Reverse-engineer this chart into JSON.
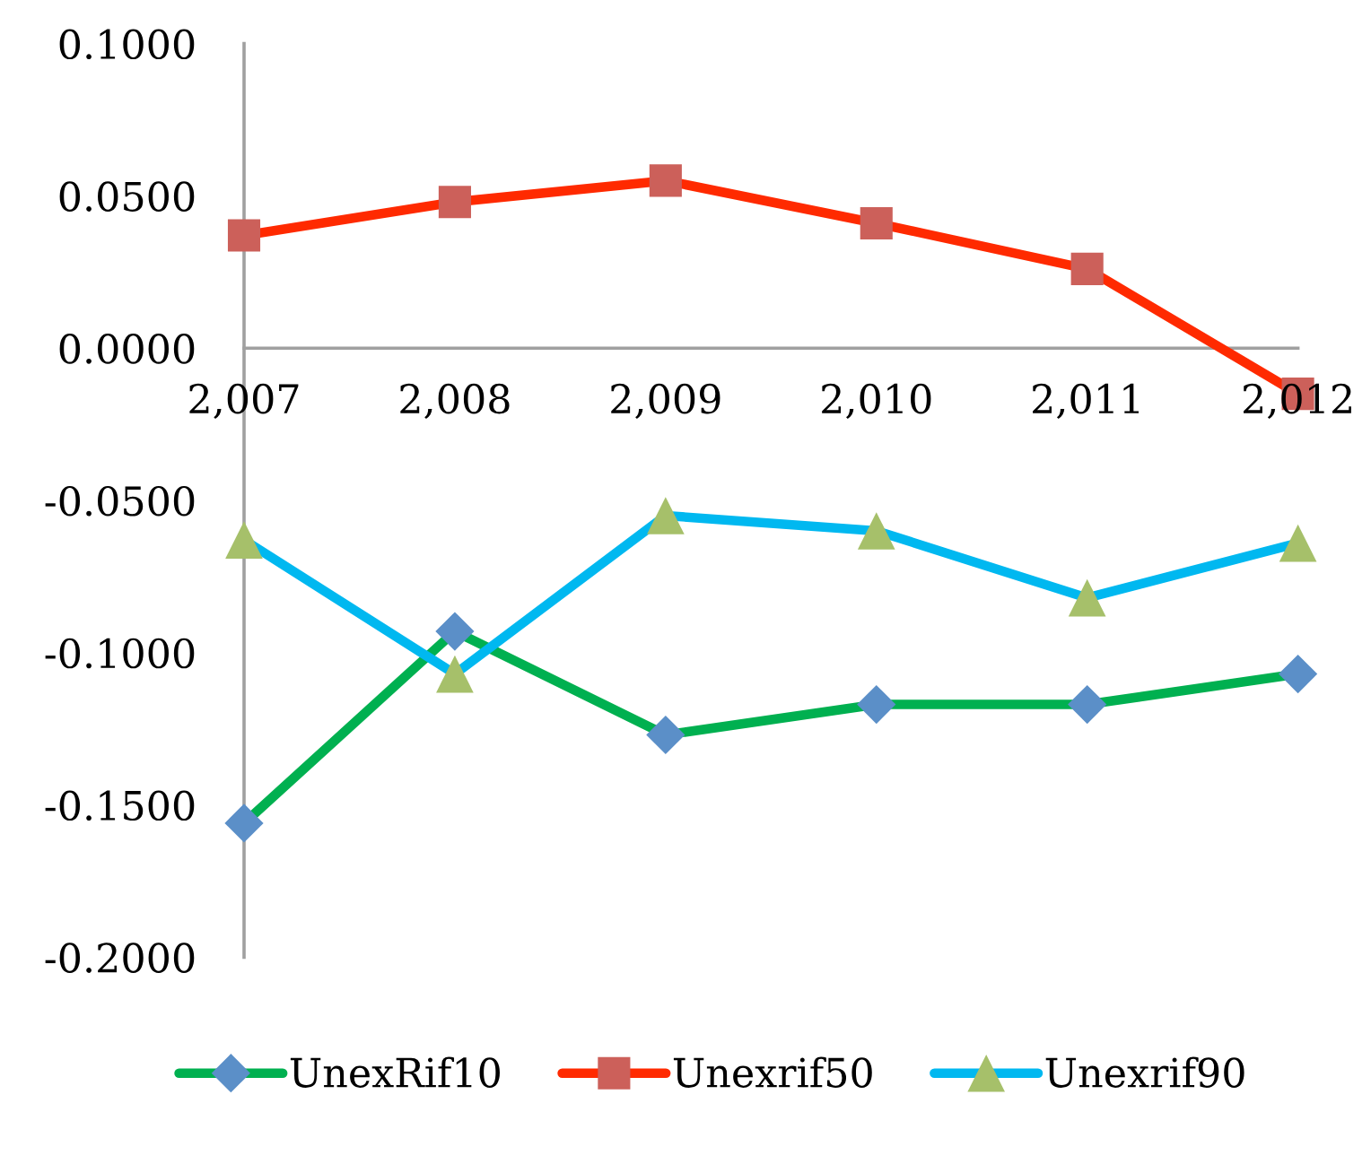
{
  "chart_data": {
    "type": "line",
    "categories": [
      "2,007",
      "2,008",
      "2,009",
      "2,010",
      "2,011",
      "2,012"
    ],
    "series": [
      {
        "name": "UnexRif10",
        "color": "#00b050",
        "marker": "diamond",
        "colors": [
          "#5b8fc8",
          "#5b8fc8",
          "#5b8fc8",
          "#5b8fc8",
          "#5b8fc8",
          "#5b8fc8"
        ],
        "values": [
          -0.156,
          -0.093,
          -0.127,
          -0.117,
          -0.117,
          -0.107
        ]
      },
      {
        "name": "Unexrif50",
        "color": "#ff2a00",
        "marker": "square",
        "colors": [
          "#cc605a",
          "#cc605a",
          "#cc605a",
          "#cc605a",
          "#cc605a",
          "#cc605a"
        ],
        "values": [
          0.037,
          0.048,
          0.055,
          0.041,
          0.026,
          -0.015
        ]
      },
      {
        "name": "Unexrif90",
        "color": "#00b8f0",
        "marker": "triangle",
        "colors": [
          "#a6c06a",
          "#a6c06a",
          "#a6c06a",
          "#a6c06a",
          "#a6c06a",
          "#a6c06a"
        ],
        "values": [
          -0.063,
          -0.107,
          -0.055,
          -0.06,
          -0.082,
          -0.064
        ]
      }
    ],
    "ylim": [
      -0.2,
      0.1
    ],
    "yticks": [
      {
        "value": 0.1,
        "label": "0.1000"
      },
      {
        "value": 0.05,
        "label": "0.0500"
      },
      {
        "value": 0,
        "label": "0.0000"
      },
      {
        "value": -0.05,
        "label": "-0.0500"
      },
      {
        "value": -0.1,
        "label": "-0.1000"
      },
      {
        "value": -0.15,
        "label": "-0.1500"
      },
      {
        "value": -0.2,
        "label": "-0.2000"
      }
    ],
    "line_style": "solid",
    "grid": false,
    "legend": "bottom"
  }
}
